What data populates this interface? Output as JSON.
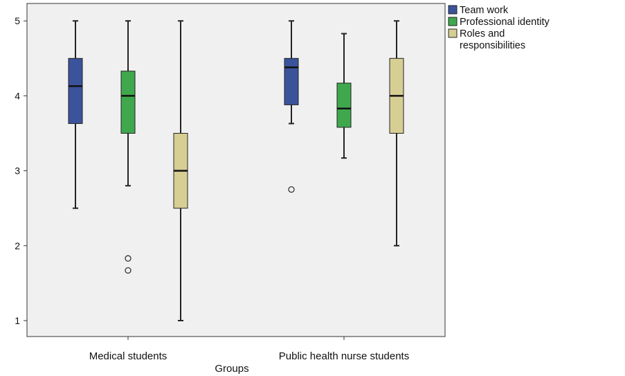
{
  "chart_data": {
    "type": "box",
    "xlabel": "Groups",
    "ylabel": "",
    "ylim": [
      0.85,
      5.2
    ],
    "yticks": [
      "1",
      "2",
      "3",
      "4",
      "5"
    ],
    "grid": false,
    "legend_position": "right",
    "categories": [
      "Medical students",
      "Public health nurse students"
    ],
    "series": [
      {
        "name": "Team work",
        "color": "#3B539B",
        "boxes": [
          {
            "min": 2.5,
            "q1": 3.63,
            "median": 4.13,
            "q3": 4.5,
            "max": 5.0,
            "outliers": []
          },
          {
            "min": 3.63,
            "q1": 3.88,
            "median": 4.38,
            "q3": 4.5,
            "max": 5.0,
            "outliers": [
              2.75
            ]
          }
        ]
      },
      {
        "name": "Professional identity",
        "color": "#3FA84D",
        "boxes": [
          {
            "min": 2.8,
            "q1": 3.5,
            "median": 4.0,
            "q3": 4.33,
            "max": 5.0,
            "outliers": [
              1.83,
              1.67
            ]
          },
          {
            "min": 3.17,
            "q1": 3.58,
            "median": 3.83,
            "q3": 4.17,
            "max": 4.83,
            "outliers": []
          }
        ]
      },
      {
        "name": "Roles and responsibilities",
        "legend_lines": [
          "Roles and",
          "responsibilities"
        ],
        "color": "#D6CE93",
        "boxes": [
          {
            "min": 1.0,
            "q1": 2.5,
            "median": 3.0,
            "q3": 3.5,
            "max": 5.0,
            "outliers": []
          },
          {
            "min": 2.0,
            "q1": 3.5,
            "median": 4.0,
            "q3": 4.5,
            "max": 5.0,
            "outliers": []
          }
        ]
      }
    ],
    "colors": {
      "plot_background": "#F0F0F0",
      "whisker": "#222222"
    }
  }
}
